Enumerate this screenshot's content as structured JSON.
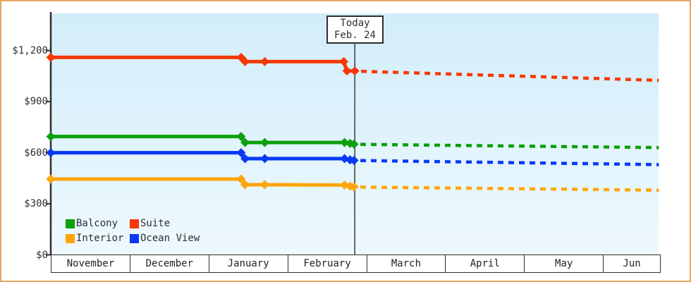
{
  "colors": {
    "page_border": "#e5a661",
    "page_bg": "#ffffff",
    "plot_bg_top": "#d2edfa",
    "plot_bg_bottom": "#eef9fe",
    "axis": "#2e2e2e",
    "text": "#2f2f2f",
    "today_line": "#3c3c3c",
    "suite": "#f63908",
    "balcony": "#0ca00c",
    "ocean_view": "#0839f5",
    "interior": "#ffa50a"
  },
  "chart_data": {
    "type": "line",
    "title": "",
    "description": "Cabin price history (solid) and forecast (dotted) by cabin category, USD",
    "x_axis": {
      "labels": [
        "November",
        "December",
        "January",
        "February",
        "March",
        "April",
        "May",
        "Jun"
      ]
    },
    "y_axis": {
      "range": [
        0,
        1200
      ],
      "ticks": [
        {
          "label": "$0",
          "value": 0
        },
        {
          "label": "$300",
          "value": 300
        },
        {
          "label": "$600",
          "value": 600
        },
        {
          "label": "$900",
          "value": 900
        },
        {
          "label": "$1,200",
          "value": 1200
        }
      ]
    },
    "today_annotation": {
      "line1": "Today",
      "line2": "Feb. 24",
      "month_position": 3.85
    },
    "series": [
      {
        "name": "Suite",
        "color": "#f63908",
        "history": [
          [
            0,
            1160
          ],
          [
            2.41,
            1160
          ],
          [
            2.46,
            1135
          ],
          [
            2.71,
            1135
          ],
          [
            3.71,
            1135
          ],
          [
            3.75,
            1080
          ],
          [
            3.85,
            1080
          ]
        ],
        "forecast": [
          [
            3.93,
            1078
          ],
          [
            7.7,
            1025
          ]
        ]
      },
      {
        "name": "Balcony",
        "color": "#0ca00c",
        "history": [
          [
            0,
            695
          ],
          [
            2.41,
            695
          ],
          [
            2.46,
            660
          ],
          [
            2.71,
            660
          ],
          [
            3.72,
            660
          ],
          [
            3.79,
            655
          ],
          [
            3.84,
            650
          ]
        ],
        "forecast": [
          [
            3.92,
            649
          ],
          [
            7.7,
            630
          ]
        ]
      },
      {
        "name": "Ocean View",
        "color": "#0839f5",
        "history": [
          [
            0,
            600
          ],
          [
            2.41,
            600
          ],
          [
            2.46,
            565
          ],
          [
            2.71,
            565
          ],
          [
            3.72,
            565
          ],
          [
            3.79,
            558
          ],
          [
            3.84,
            555
          ]
        ],
        "forecast": [
          [
            3.92,
            554
          ],
          [
            7.7,
            530
          ]
        ]
      },
      {
        "name": "Interior",
        "color": "#ffa50a",
        "history": [
          [
            0,
            445
          ],
          [
            2.41,
            445
          ],
          [
            2.46,
            412
          ],
          [
            2.71,
            412
          ],
          [
            3.72,
            410
          ],
          [
            3.79,
            403
          ],
          [
            3.84,
            400
          ]
        ],
        "forecast": [
          [
            3.92,
            398
          ],
          [
            7.7,
            380
          ]
        ]
      }
    ],
    "legend": {
      "items": [
        {
          "label": "Balcony",
          "color": "#0ca00c"
        },
        {
          "label": "Suite",
          "color": "#f63908"
        },
        {
          "label": "Interior",
          "color": "#ffa50a"
        },
        {
          "label": "Ocean View",
          "color": "#0839f5"
        }
      ]
    }
  }
}
